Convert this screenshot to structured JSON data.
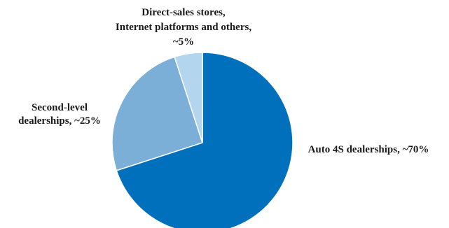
{
  "chart_data": {
    "type": "pie",
    "title": "",
    "start_angle_deg": 0,
    "direction": "clockwise",
    "slices": [
      {
        "label": [
          "Auto 4S dealerships, ~70%"
        ],
        "value": 70,
        "color": "#0070bd"
      },
      {
        "label": [
          "Second-level",
          "dealerships, ~25%"
        ],
        "value": 25,
        "color": "#7bafd7"
      },
      {
        "label": [
          "Direct-sales stores,",
          "Internet platforms and others,",
          "~5%"
        ],
        "value": 5,
        "color": "#b4d5ee"
      }
    ]
  }
}
